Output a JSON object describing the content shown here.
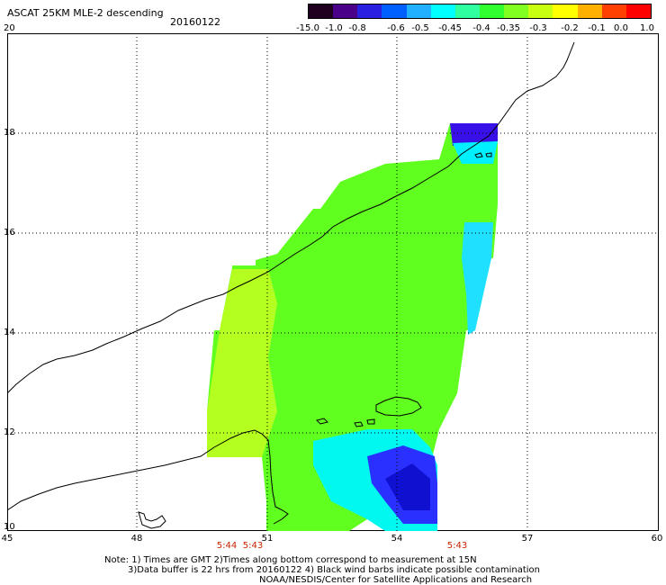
{
  "header": {
    "title": "ASCAT 25KM MLE-2 descending",
    "date": "20160122"
  },
  "legend": {
    "labels": [
      "-15.0",
      "-1.0",
      "-0.8",
      "-0.6",
      "-0.5",
      "-0.45",
      "-0.4",
      "-0.35",
      "-0.3",
      "-0.2",
      "-0.1",
      "0.0",
      "1.0"
    ],
    "colors": [
      "#200020",
      "#4a0088",
      "#2a20e0",
      "#0060ff",
      "#20b0ff",
      "#00ffff",
      "#30ffa0",
      "#30ff30",
      "#80ff20",
      "#c8ff10",
      "#ffff00",
      "#ffb000",
      "#ff4000",
      "#ff0000"
    ]
  },
  "map": {
    "x_ticks": [
      "45",
      "48",
      "51",
      "54",
      "57",
      "60"
    ],
    "y_ticks": [
      "20",
      "18",
      "16",
      "14",
      "12",
      "10"
    ],
    "pass_times": [
      "5:44",
      "5:43",
      "5:43"
    ]
  },
  "footer": {
    "note1": "Note: 1) Times are GMT 2)Times along bottom correspond to measurement at 15N",
    "note2": "3)Data buffer is 22 hrs from 20160122 4) Black wind barbs indicate possible contamination",
    "credit": "NOAA/NESDIS/Center for Satellite Applications and Research"
  }
}
